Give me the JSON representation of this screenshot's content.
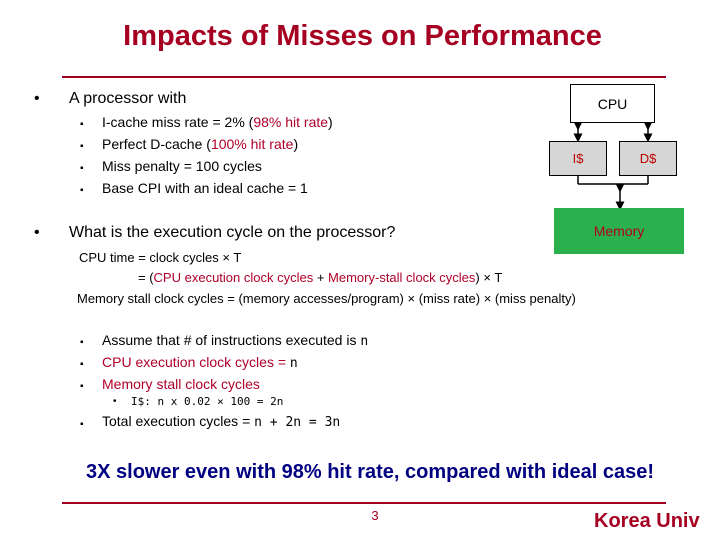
{
  "title": "Impacts of Misses on Performance",
  "bullet1": {
    "text": "A processor with",
    "sub": [
      {
        "pre": "I-cache miss rate = 2% (",
        "hl": "98% hit rate",
        "post": ")"
      },
      {
        "pre": "Perfect D-cache (",
        "hl": "100% hit rate",
        "post": ")"
      },
      {
        "pre": "Miss penalty = 100 cycles",
        "hl": "",
        "post": ""
      },
      {
        "pre": "Base CPI with an ideal cache = 1",
        "hl": "",
        "post": ""
      }
    ]
  },
  "bullet2": {
    "text": "What is the execution cycle on the processor?"
  },
  "formulas": {
    "line1": "CPU time = clock cycles × T",
    "line2_pre": "= (",
    "line2_a": "CPU execution clock cycles",
    "line2_plus": " + ",
    "line2_b": "Memory-stall clock cycles",
    "line2_post": ") × T",
    "line3_label": "Memory stall clock cycles = ",
    "line3_rest": "(memory accesses/program) × (miss rate) × (miss penalty)"
  },
  "steps": {
    "s1_text": "Assume that # of instructions executed is ",
    "s1_var": "n",
    "s2_text": "CPU execution clock cycles = ",
    "s2_var": "n",
    "s3_text": "Memory stall clock cycles",
    "s3_sub": "I$: n x 0.02 × 100 = 2n",
    "s4_text": "Total execution cycles = ",
    "s4_expr": "n + 2n = 3n"
  },
  "diagram": {
    "cpu": "CPU",
    "icache": "I$",
    "dcache": "D$",
    "memory": "Memory"
  },
  "conclusion": "3X slower even with 98% hit rate, compared with ideal case!",
  "page_number": "3",
  "footer": "Korea Univ"
}
